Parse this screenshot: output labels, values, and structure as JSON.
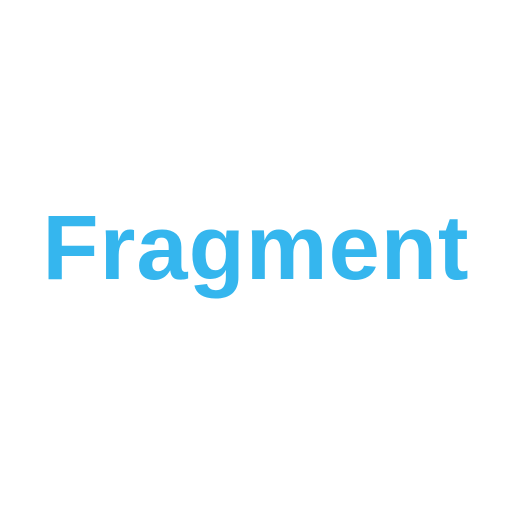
{
  "logo": {
    "text": "Fragment",
    "color": "#35b6ee"
  },
  "background_color": "#ffffff"
}
